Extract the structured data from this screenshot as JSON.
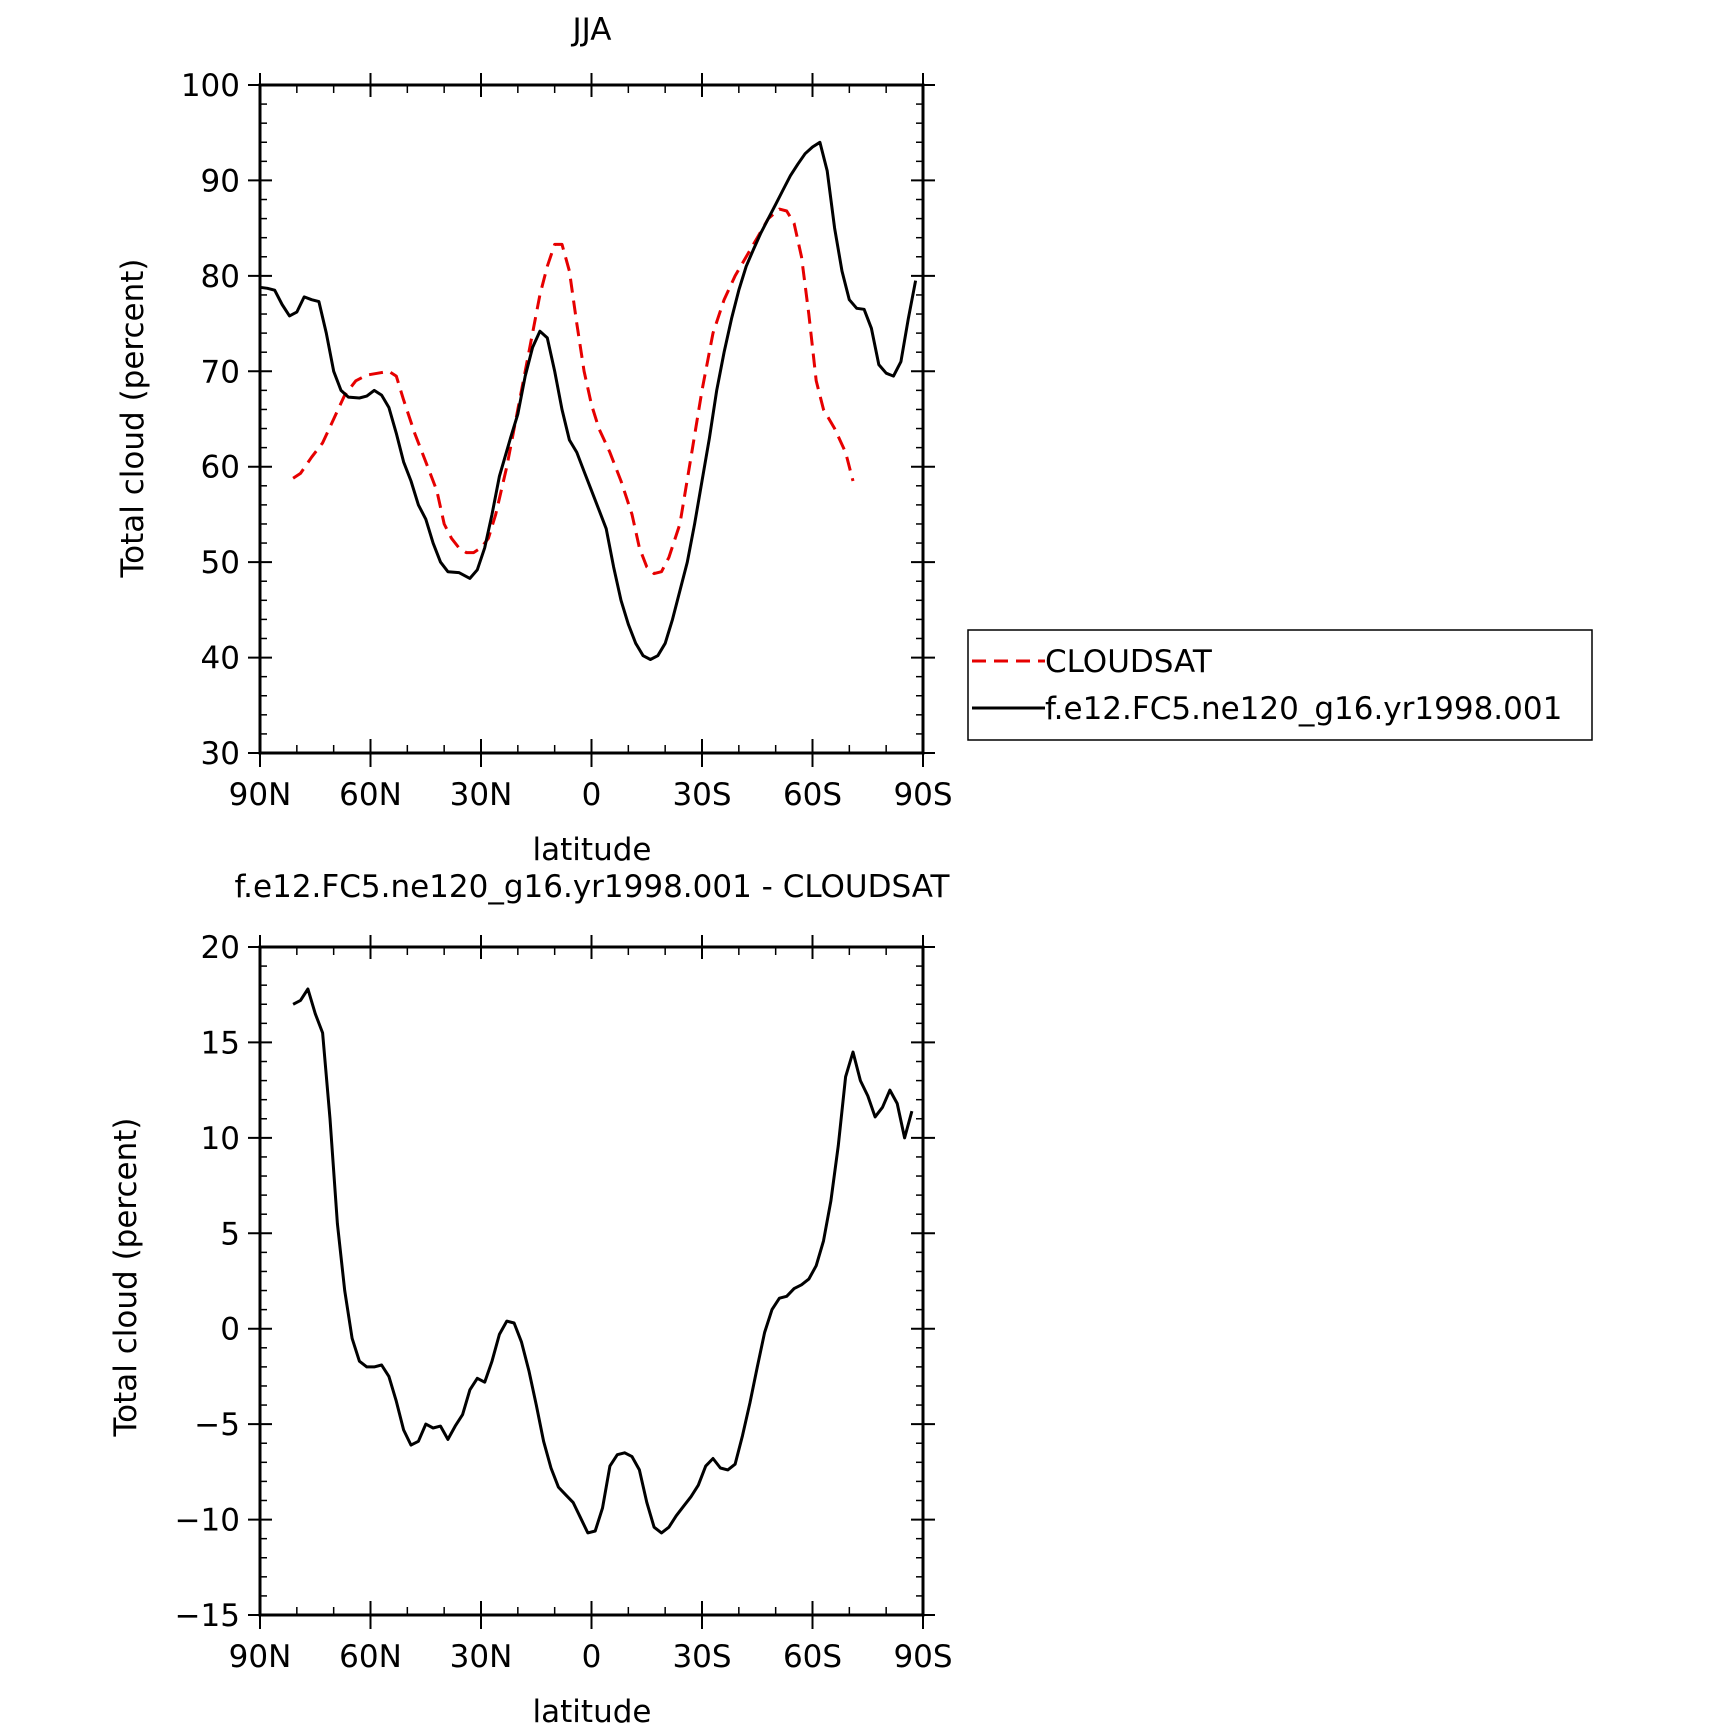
{
  "chart_data": [
    {
      "type": "line",
      "title": "JJA",
      "xlabel": "latitude",
      "ylabel": "Total cloud (percent)",
      "xlim": [
        90,
        -90
      ],
      "ylim": [
        30,
        100
      ],
      "yticks": [
        30,
        40,
        50,
        60,
        70,
        80,
        90,
        100
      ],
      "xticks": [
        {
          "value": 90,
          "label": "90N"
        },
        {
          "value": 60,
          "label": "60N"
        },
        {
          "value": 30,
          "label": "30N"
        },
        {
          "value": 0,
          "label": "0"
        },
        {
          "value": -30,
          "label": "30S"
        },
        {
          "value": -60,
          "label": "60S"
        },
        {
          "value": -90,
          "label": "90S"
        }
      ],
      "legend": {
        "placement": "right",
        "entries": [
          {
            "label": "CLOUDSAT",
            "color": "#e60000",
            "dash": "dashed"
          },
          {
            "label": "f.e12.FC5.ne120_g16.yr1998.001",
            "color": "#000000",
            "dash": "solid"
          }
        ]
      },
      "series": [
        {
          "name": "CLOUDSAT",
          "color": "#e60000",
          "dash": "dashed",
          "points": [
            [
              81,
              58.8
            ],
            [
              79,
              59.3
            ],
            [
              76,
              61
            ],
            [
              73,
              62.5
            ],
            [
              70,
              65
            ],
            [
              67,
              67.5
            ],
            [
              64,
              69
            ],
            [
              61,
              69.6
            ],
            [
              58,
              69.8
            ],
            [
              55,
              70
            ],
            [
              53,
              69.5
            ],
            [
              51,
              67
            ],
            [
              48,
              63.5
            ],
            [
              45,
              60.5
            ],
            [
              42,
              57.5
            ],
            [
              40,
              54
            ],
            [
              38,
              52.5
            ],
            [
              36,
              51.5
            ],
            [
              34,
              51
            ],
            [
              32,
              51
            ],
            [
              30,
              51.5
            ],
            [
              28,
              52.5
            ],
            [
              26,
              55
            ],
            [
              23,
              60
            ],
            [
              20,
              66
            ],
            [
              17,
              72
            ],
            [
              14,
              78
            ],
            [
              12,
              81
            ],
            [
              10,
              83.3
            ],
            [
              8,
              83.3
            ],
            [
              6,
              80.5
            ],
            [
              4,
              75
            ],
            [
              2,
              70
            ],
            [
              0,
              66.5
            ],
            [
              -2,
              64
            ],
            [
              -5,
              61.5
            ],
            [
              -8,
              58.5
            ],
            [
              -11,
              55
            ],
            [
              -13,
              51.5
            ],
            [
              -15,
              49.5
            ],
            [
              -17,
              48.8
            ],
            [
              -19,
              49
            ],
            [
              -21,
              50.5
            ],
            [
              -24,
              54
            ],
            [
              -27,
              61
            ],
            [
              -30,
              68
            ],
            [
              -33,
              74
            ],
            [
              -36,
              77.5
            ],
            [
              -39,
              80
            ],
            [
              -42,
              82
            ],
            [
              -45,
              84
            ],
            [
              -48,
              86
            ],
            [
              -51,
              87
            ],
            [
              -53,
              86.8
            ],
            [
              -55,
              85.5
            ],
            [
              -57,
              82
            ],
            [
              -59,
              76
            ],
            [
              -61,
              69
            ],
            [
              -63,
              66
            ],
            [
              -66,
              64
            ],
            [
              -69,
              61.5
            ],
            [
              -71,
              58.5
            ]
          ]
        },
        {
          "name": "f.e12.FC5.ne120_g16.yr1998.001",
          "color": "#000000",
          "dash": "solid",
          "points": [
            [
              90,
              78.8
            ],
            [
              88,
              78.7
            ],
            [
              86,
              78.5
            ],
            [
              84,
              77
            ],
            [
              82,
              75.8
            ],
            [
              80,
              76.2
            ],
            [
              78,
              77.8
            ],
            [
              76,
              77.5
            ],
            [
              74,
              77.3
            ],
            [
              72,
              74
            ],
            [
              70,
              70
            ],
            [
              68,
              68
            ],
            [
              66,
              67.3
            ],
            [
              63,
              67.2
            ],
            [
              61,
              67.4
            ],
            [
              59,
              68
            ],
            [
              57,
              67.5
            ],
            [
              55,
              66.2
            ],
            [
              53,
              63.5
            ],
            [
              51,
              60.5
            ],
            [
              49,
              58.5
            ],
            [
              47,
              56
            ],
            [
              45,
              54.5
            ],
            [
              43,
              52
            ],
            [
              41,
              50
            ],
            [
              39,
              49
            ],
            [
              36,
              48.9
            ],
            [
              33,
              48.3
            ],
            [
              31,
              49.2
            ],
            [
              29,
              51.5
            ],
            [
              27,
              55
            ],
            [
              25,
              59
            ],
            [
              22,
              63
            ],
            [
              20,
              65.5
            ],
            [
              18,
              69.5
            ],
            [
              16,
              72.5
            ],
            [
              14,
              74.2
            ],
            [
              12,
              73.5
            ],
            [
              10,
              70
            ],
            [
              8,
              66
            ],
            [
              6,
              62.8
            ],
            [
              4,
              61.5
            ],
            [
              2,
              59.5
            ],
            [
              0,
              57.5
            ],
            [
              -2,
              55.5
            ],
            [
              -4,
              53.5
            ],
            [
              -6,
              49.5
            ],
            [
              -8,
              46
            ],
            [
              -10,
              43.5
            ],
            [
              -12,
              41.5
            ],
            [
              -14,
              40.2
            ],
            [
              -16,
              39.8
            ],
            [
              -18,
              40.2
            ],
            [
              -20,
              41.5
            ],
            [
              -22,
              44
            ],
            [
              -24,
              47
            ],
            [
              -26,
              50
            ],
            [
              -28,
              54
            ],
            [
              -30,
              58.5
            ],
            [
              -32,
              63
            ],
            [
              -34,
              68
            ],
            [
              -36,
              72
            ],
            [
              -38,
              75.5
            ],
            [
              -40,
              78.5
            ],
            [
              -42,
              81
            ],
            [
              -44,
              82.8
            ],
            [
              -46,
              84.5
            ],
            [
              -48,
              86
            ],
            [
              -50,
              87.5
            ],
            [
              -52,
              89
            ],
            [
              -54,
              90.5
            ],
            [
              -56,
              91.7
            ],
            [
              -58,
              92.8
            ],
            [
              -60,
              93.5
            ],
            [
              -62,
              94
            ],
            [
              -64,
              91
            ],
            [
              -66,
              85
            ],
            [
              -68,
              80.5
            ],
            [
              -70,
              77.5
            ],
            [
              -72,
              76.6
            ],
            [
              -74,
              76.5
            ],
            [
              -76,
              74.5
            ],
            [
              -78,
              70.7
            ],
            [
              -80,
              69.8
            ],
            [
              -82,
              69.5
            ],
            [
              -84,
              71
            ],
            [
              -86,
              75.5
            ],
            [
              -88,
              79.5
            ]
          ]
        }
      ]
    },
    {
      "type": "line",
      "title": "f.e12.FC5.ne120_g16.yr1998.001 - CLOUDSAT",
      "xlabel": "latitude",
      "ylabel": "Total cloud (percent)",
      "xlim": [
        90,
        -90
      ],
      "ylim": [
        -15,
        20
      ],
      "yticks": [
        -15,
        -10,
        -5,
        0,
        5,
        10,
        15,
        20
      ],
      "ytick_labels": [
        "−15",
        "−10",
        "−5",
        "0",
        "5",
        "10",
        "15",
        "20"
      ],
      "xticks": [
        {
          "value": 90,
          "label": "90N"
        },
        {
          "value": 60,
          "label": "60N"
        },
        {
          "value": 30,
          "label": "30N"
        },
        {
          "value": 0,
          "label": "0"
        },
        {
          "value": -30,
          "label": "30S"
        },
        {
          "value": -60,
          "label": "60S"
        },
        {
          "value": -90,
          "label": "90S"
        }
      ],
      "series": [
        {
          "color": "#000000",
          "dash": "solid",
          "points": [
            [
              81,
              17
            ],
            [
              79,
              17.2
            ],
            [
              77,
              17.8
            ],
            [
              75,
              16.5
            ],
            [
              73,
              15.5
            ],
            [
              71,
              11
            ],
            [
              69,
              5.5
            ],
            [
              67,
              2
            ],
            [
              65,
              -0.5
            ],
            [
              63,
              -1.7
            ],
            [
              61,
              -2
            ],
            [
              59,
              -2
            ],
            [
              57,
              -1.9
            ],
            [
              55,
              -2.5
            ],
            [
              53,
              -3.8
            ],
            [
              51,
              -5.3
            ],
            [
              49,
              -6.1
            ],
            [
              47,
              -5.9
            ],
            [
              45,
              -5
            ],
            [
              43,
              -5.2
            ],
            [
              41,
              -5.1
            ],
            [
              39,
              -5.8
            ],
            [
              37,
              -5.1
            ],
            [
              35,
              -4.5
            ],
            [
              33,
              -3.2
            ],
            [
              31,
              -2.6
            ],
            [
              29,
              -2.8
            ],
            [
              27,
              -1.7
            ],
            [
              25,
              -0.3
            ],
            [
              23,
              0.4
            ],
            [
              21,
              0.3
            ],
            [
              19,
              -0.7
            ],
            [
              17,
              -2.2
            ],
            [
              15,
              -4
            ],
            [
              13,
              -5.9
            ],
            [
              11,
              -7.3
            ],
            [
              9,
              -8.3
            ],
            [
              7,
              -8.7
            ],
            [
              5,
              -9.1
            ],
            [
              3,
              -9.9
            ],
            [
              1,
              -10.7
            ],
            [
              -1,
              -10.6
            ],
            [
              -3,
              -9.4
            ],
            [
              -5,
              -7.2
            ],
            [
              -7,
              -6.6
            ],
            [
              -9,
              -6.5
            ],
            [
              -11,
              -6.7
            ],
            [
              -13,
              -7.4
            ],
            [
              -15,
              -9.1
            ],
            [
              -17,
              -10.4
            ],
            [
              -19,
              -10.7
            ],
            [
              -21,
              -10.4
            ],
            [
              -23,
              -9.8
            ],
            [
              -25,
              -9.3
            ],
            [
              -27,
              -8.8
            ],
            [
              -29,
              -8.2
            ],
            [
              -31,
              -7.2
            ],
            [
              -33,
              -6.8
            ],
            [
              -35,
              -7.3
            ],
            [
              -37,
              -7.4
            ],
            [
              -39,
              -7.1
            ],
            [
              -41,
              -5.6
            ],
            [
              -43,
              -3.9
            ],
            [
              -45,
              -2
            ],
            [
              -47,
              -0.2
            ],
            [
              -49,
              1
            ],
            [
              -51,
              1.6
            ],
            [
              -53,
              1.7
            ],
            [
              -55,
              2.1
            ],
            [
              -57,
              2.3
            ],
            [
              -59,
              2.6
            ],
            [
              -61,
              3.3
            ],
            [
              -63,
              4.6
            ],
            [
              -65,
              6.7
            ],
            [
              -67,
              9.6
            ],
            [
              -69,
              13.2
            ],
            [
              -71,
              14.5
            ],
            [
              -73,
              13
            ],
            [
              -75,
              12.2
            ],
            [
              -77,
              11.1
            ],
            [
              -79,
              11.6
            ],
            [
              -81,
              12.5
            ],
            [
              -83,
              11.8
            ],
            [
              -85,
              10
            ],
            [
              -87,
              11.4
            ]
          ]
        }
      ]
    }
  ]
}
